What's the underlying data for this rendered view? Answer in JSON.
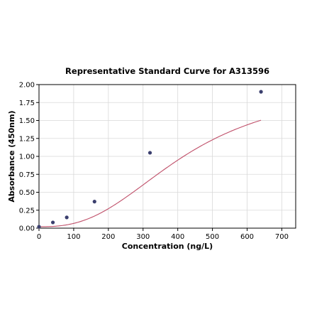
{
  "chart_data": {
    "type": "scatter",
    "title": "Representative Standard Curve for A313596",
    "xlabel": "Concentration (ng/L)",
    "ylabel": "Absorbance (450nm)",
    "xlim": [
      0,
      740
    ],
    "ylim": [
      0,
      2.0
    ],
    "x_ticks": [
      "0",
      "100",
      "200",
      "300",
      "400",
      "500",
      "600",
      "700"
    ],
    "y_ticks": [
      "0.00",
      "0.25",
      "0.50",
      "0.75",
      "1.00",
      "1.25",
      "1.50",
      "1.75",
      "2.00"
    ],
    "grid": true,
    "series": [
      {
        "points": [
          {
            "x": 0,
            "y": 0.02
          },
          {
            "x": 40,
            "y": 0.08
          },
          {
            "x": 80,
            "y": 0.15
          },
          {
            "x": 160,
            "y": 0.37
          },
          {
            "x": 320,
            "y": 1.05
          },
          {
            "x": 640,
            "y": 1.9
          }
        ]
      }
    ],
    "fit_curve": {
      "type": "4PL",
      "a": 0.02,
      "b": 2.0,
      "c": 420,
      "d": 2.6
    },
    "colors": {
      "marker": "#3b3f6e",
      "curve": "#c0506a",
      "grid": "#d9d9d9",
      "axis": "#000000"
    }
  }
}
